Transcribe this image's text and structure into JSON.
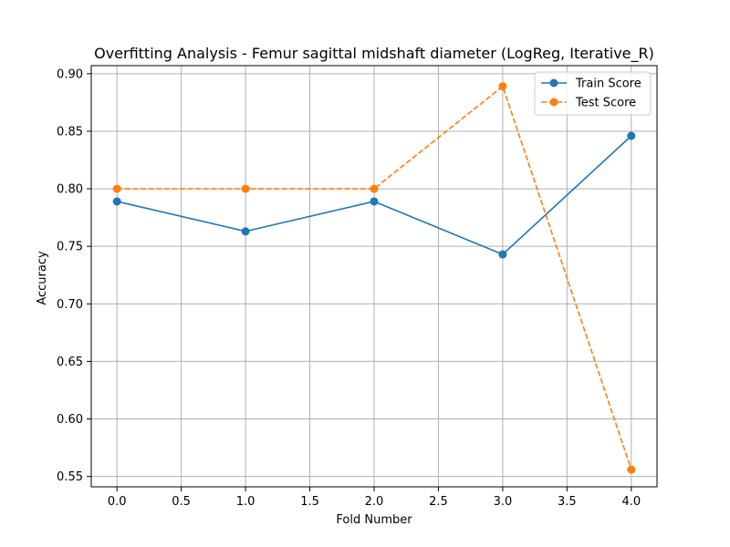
{
  "chart_data": {
    "type": "line",
    "title": "Overfitting Analysis - Femur sagittal midshaft diameter (LogReg, Iterative_R)",
    "xlabel": "Fold Number",
    "ylabel": "Accuracy",
    "x": [
      0,
      1,
      2,
      3,
      4
    ],
    "xlim": [
      -0.2,
      4.2
    ],
    "ylim": [
      0.541,
      0.907
    ],
    "xticks": [
      0.0,
      0.5,
      1.0,
      1.5,
      2.0,
      2.5,
      3.0,
      3.5,
      4.0
    ],
    "xtick_labels": [
      "0.0",
      "0.5",
      "1.0",
      "1.5",
      "2.0",
      "2.5",
      "3.0",
      "3.5",
      "4.0"
    ],
    "yticks": [
      0.55,
      0.6,
      0.65,
      0.7,
      0.75,
      0.8,
      0.85,
      0.9
    ],
    "ytick_labels": [
      "0.55",
      "0.60",
      "0.65",
      "0.70",
      "0.75",
      "0.80",
      "0.85",
      "0.90"
    ],
    "grid": true,
    "legend_position": "top-right",
    "series": [
      {
        "name": "Train Score",
        "values": [
          0.789,
          0.763,
          0.789,
          0.743,
          0.846
        ],
        "color": "#1f77b4",
        "style": "solid",
        "marker": "circle"
      },
      {
        "name": "Test Score",
        "values": [
          0.8,
          0.8,
          0.8,
          0.889,
          0.556
        ],
        "color": "#ff7f0e",
        "style": "dashed",
        "marker": "circle"
      }
    ]
  }
}
